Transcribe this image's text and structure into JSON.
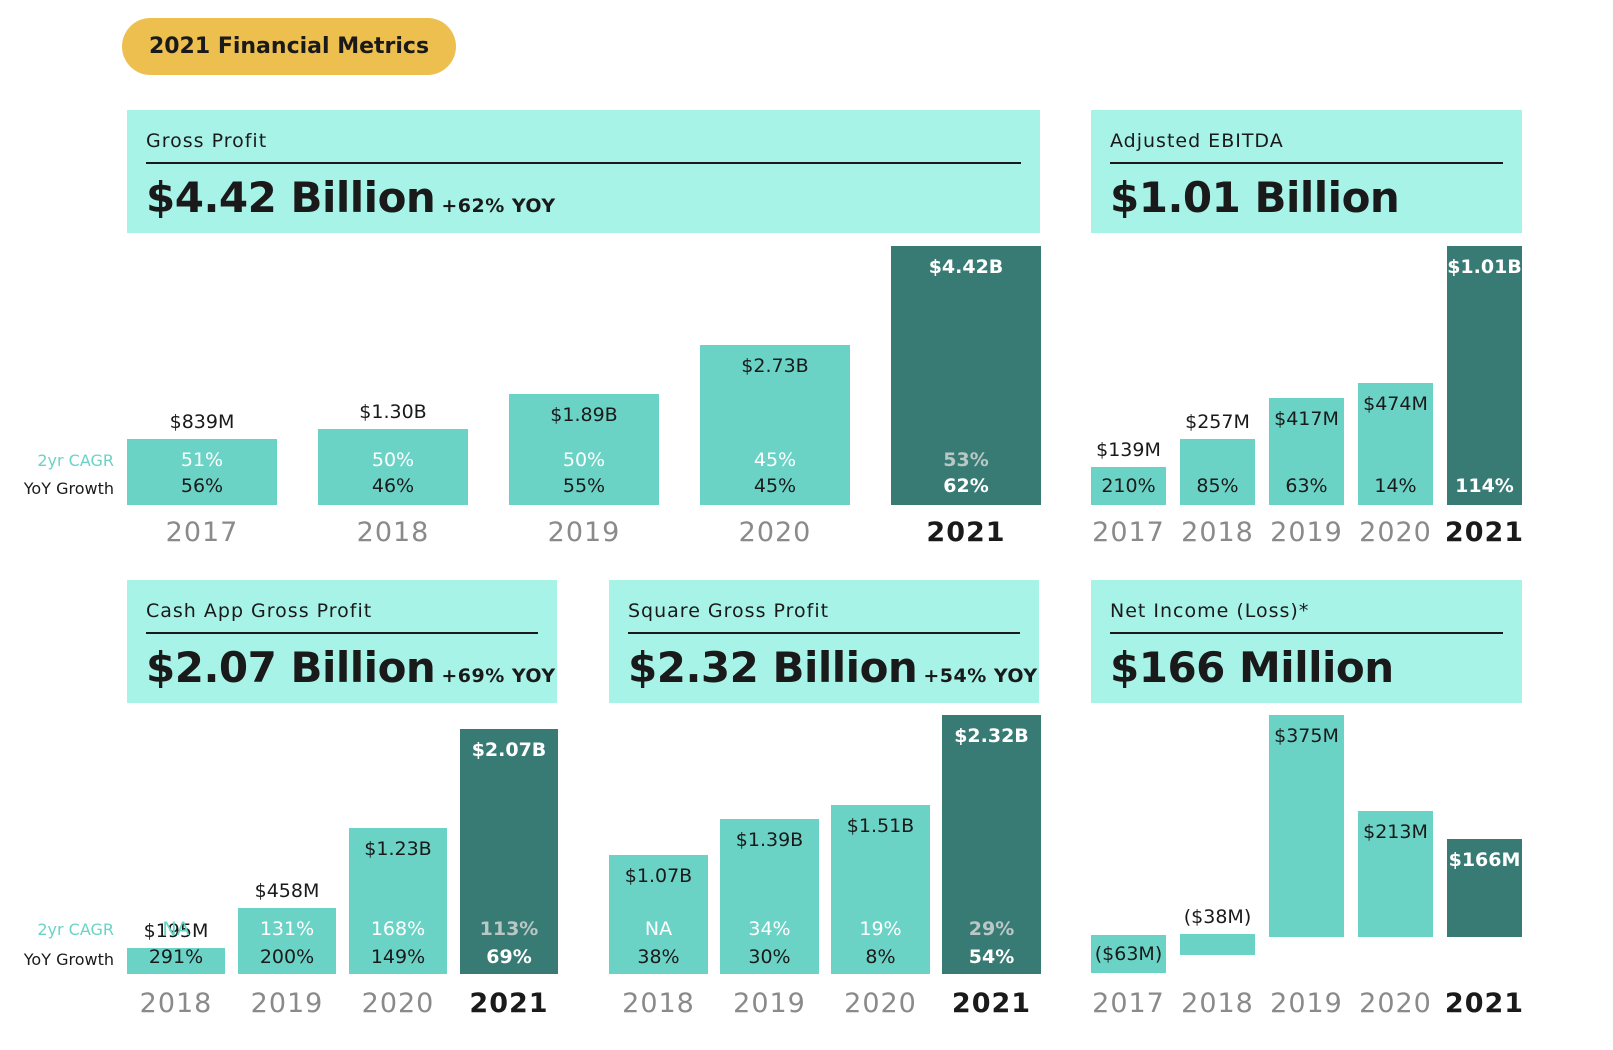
{
  "page_title": "2021 Financial Metrics",
  "row_labels": {
    "cagr": "2yr CAGR",
    "yoy": "YoY Growth"
  },
  "colors": {
    "header_bg": "#a8f3e8",
    "bar": "#6bd3c6",
    "bar_highlight": "#387a74",
    "pill": "#ecbf4f"
  },
  "chart_data": [
    {
      "id": "gross-profit",
      "type": "bar",
      "title": "Gross Profit",
      "headline": "$4.42 Billion",
      "headline_yoy": "+62% YOY",
      "unit": "USD millions",
      "categories": [
        "2017",
        "2018",
        "2019",
        "2020",
        "2021"
      ],
      "values": [
        839,
        1300,
        1890,
        2730,
        4420
      ],
      "value_labels": [
        "$839M",
        "$1.30B",
        "$1.89B",
        "$2.73B",
        "$4.42B"
      ],
      "cagr_2yr": [
        "51%",
        "50%",
        "50%",
        "45%",
        "53%"
      ],
      "yoy_growth": [
        "56%",
        "46%",
        "55%",
        "45%",
        "62%"
      ],
      "highlight": "2021"
    },
    {
      "id": "adjusted-ebitda",
      "type": "bar",
      "title": "Adjusted EBITDA",
      "headline": "$1.01 Billion",
      "headline_yoy": "",
      "unit": "USD millions",
      "categories": [
        "2017",
        "2018",
        "2019",
        "2020",
        "2021"
      ],
      "values": [
        139,
        257,
        417,
        474,
        1010
      ],
      "value_labels": [
        "$139M",
        "$257M",
        "$417M",
        "$474M",
        "$1.01B"
      ],
      "yoy_growth": [
        "210%",
        "85%",
        "63%",
        "14%",
        "114%"
      ],
      "highlight": "2021"
    },
    {
      "id": "cash-app-gross-profit",
      "type": "bar",
      "title": "Cash App Gross Profit",
      "headline": "$2.07 Billion",
      "headline_yoy": "+69% YOY",
      "unit": "USD millions",
      "categories": [
        "2018",
        "2019",
        "2020",
        "2021"
      ],
      "values": [
        195,
        458,
        1230,
        2070
      ],
      "value_labels": [
        "$195M",
        "$458M",
        "$1.23B",
        "$2.07B"
      ],
      "cagr_2yr": [
        "NA",
        "131%",
        "168%",
        "113%"
      ],
      "yoy_growth": [
        "291%",
        "200%",
        "149%",
        "69%"
      ],
      "highlight": "2021"
    },
    {
      "id": "square-gross-profit",
      "type": "bar",
      "title": "Square Gross Profit",
      "headline": "$2.32 Billion",
      "headline_yoy": "+54% YOY",
      "unit": "USD millions",
      "categories": [
        "2018",
        "2019",
        "2020",
        "2021"
      ],
      "values": [
        1070,
        1390,
        1510,
        2320
      ],
      "value_labels": [
        "$1.07B",
        "$1.39B",
        "$1.51B",
        "$2.32B"
      ],
      "cagr_2yr": [
        "NA",
        "34%",
        "19%",
        "29%"
      ],
      "yoy_growth": [
        "38%",
        "30%",
        "8%",
        "54%"
      ],
      "highlight": "2021"
    },
    {
      "id": "net-income",
      "type": "bar",
      "title": "Net Income (Loss)*",
      "headline": "$166 Million",
      "headline_yoy": "",
      "unit": "USD millions",
      "categories": [
        "2017",
        "2018",
        "2019",
        "2020",
        "2021"
      ],
      "values": [
        -63,
        -38,
        375,
        213,
        166
      ],
      "value_labels": [
        "($63M)",
        "($38M)",
        "$375M",
        "$213M",
        "$166M"
      ],
      "highlight": "2021"
    }
  ]
}
